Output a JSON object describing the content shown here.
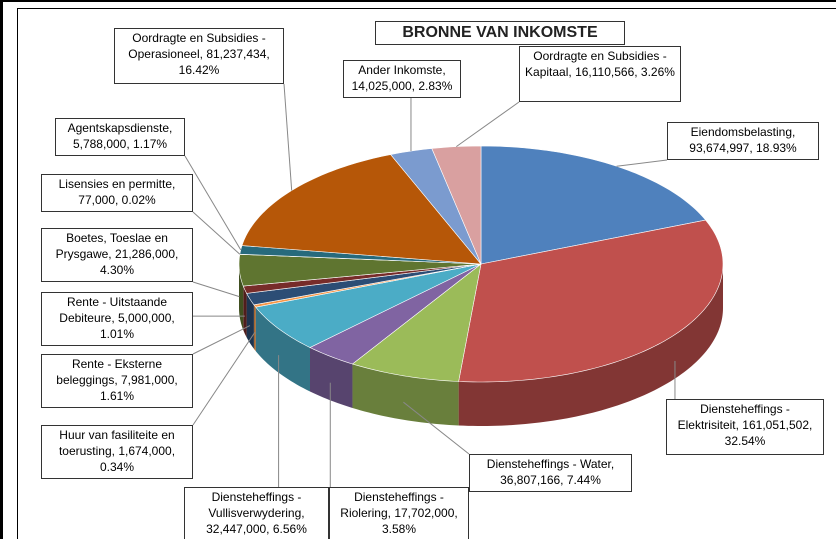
{
  "chart_data": {
    "type": "pie",
    "title": "BRONNE VAN INKOMSTE",
    "categories": [
      "Eiendomsbelasting",
      "Diensteheffings - Elektrisiteit",
      "Diensteheffings - Water",
      "Diensteheffings - Riolering",
      "Diensteheffings - Vullisverwydering",
      "Huur van fasiliteite en toerusting",
      "Rente - Eksterne beleggings",
      "Rente - Uitstaande Debiteure",
      "Boetes, Toeslae en Prysgawe",
      "Lisensies en permitte",
      "Agentskapsdienste",
      "Oordragte en Subsidies - Operasioneel",
      "Ander Inkomste",
      "Oordragte en Subsidies - Kapitaal"
    ],
    "values": [
      93674997,
      161051502,
      36807166,
      17702000,
      32447000,
      1674000,
      7981000,
      5000000,
      21286000,
      77000,
      5788000,
      81237434,
      14025000,
      16110566
    ],
    "value_labels": [
      "93,674,997",
      "161,051,502",
      "36,807,166",
      "17,702,000",
      "32,447,000",
      "1,674,000",
      "7,981,000",
      "5,000,000",
      "21,286,000",
      "77,000",
      "5,788,000",
      "81,237,434",
      "14,025,000",
      "16,110,566"
    ],
    "percents": [
      18.93,
      32.54,
      7.44,
      3.58,
      6.56,
      0.34,
      1.61,
      1.01,
      4.3,
      0.02,
      1.17,
      16.42,
      2.83,
      3.26
    ],
    "percent_labels": [
      "18.93%",
      "32.54%",
      "7.44%",
      "3.58%",
      "6.56%",
      "0.34%",
      "1.61%",
      "1.01%",
      "4.30%",
      "0.02%",
      "1.17%",
      "16.42%",
      "2.83%",
      "3.26%"
    ],
    "colors": [
      "#4F81BD",
      "#C0504D",
      "#9BBB59",
      "#8064A2",
      "#4BACC6",
      "#F79646",
      "#2C4D75",
      "#772C2A",
      "#5F7530",
      "#4D3B62",
      "#276A7C",
      "#B65708",
      "#7B9BCF",
      "#D9A0A0"
    ]
  }
}
